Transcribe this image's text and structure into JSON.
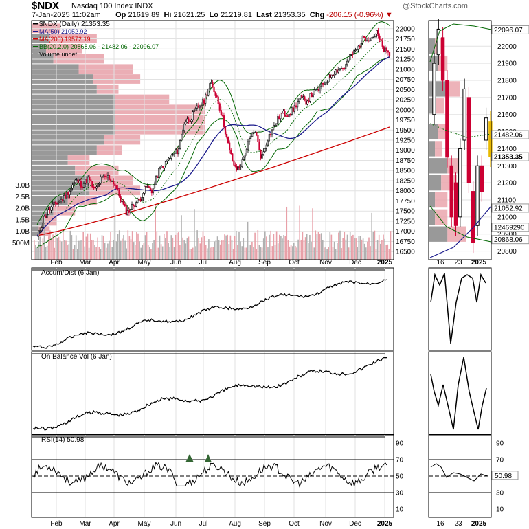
{
  "header": {
    "symbol": "$NDX",
    "name": "Nasdaq 100 Index INDX",
    "brand": "@StockCharts.com",
    "date": "7-Jan-2025 11:02am",
    "open_label": "Op",
    "open": "21619.89",
    "high_label": "Hi",
    "high": "21621.25",
    "low_label": "Lo",
    "low": "21219.81",
    "last_label": "Last",
    "last": "21353.35",
    "chg_label": "Chg",
    "chg": "-206.15 (-0.96%)"
  },
  "legend": {
    "price": "$NDX (Daily) 21353.35",
    "ma50": "MA(50) 21052.92",
    "ma200": "MA(200) 19572.19",
    "bb": "BB(20,2.0) 20868.06 - 21482.06 - 22096.07",
    "volume": "Volume undef"
  },
  "panels": {
    "accum": "Accum/Dist (6 Jan)",
    "obv": "On Balance Vol (6 Jan)",
    "rsi": "RSI(14) 50.98"
  },
  "price_axis_right": [
    "22000",
    "21750",
    "21500",
    "21250",
    "21000",
    "20750",
    "20500",
    "20250",
    "20000",
    "19750",
    "19500",
    "19250",
    "19000",
    "18750",
    "18500",
    "18250",
    "18000",
    "17750",
    "17500",
    "17250",
    "17000",
    "16750",
    "16500"
  ],
  "volume_axis_left": [
    "3.0B",
    "2.5B",
    "2.0B",
    "1.5B",
    "1.0B",
    "500M"
  ],
  "month_labels": [
    "Feb",
    "Mar",
    "Apr",
    "May",
    "Jun",
    "Jul",
    "Aug",
    "Sep",
    "Oct",
    "Nov",
    "Dec",
    "2025"
  ],
  "zoom": {
    "price_axis": [
      "22000",
      "21900",
      "21800",
      "21700",
      "21600",
      "21500",
      "21400",
      "21300",
      "21200",
      "21100",
      "21000",
      "20900",
      "20800"
    ],
    "badges": {
      "bb_upper": "22096.07",
      "bb_mid": "21482.06",
      "last": "21353.35",
      "ma50": "21052.92",
      "extra": "12469290",
      "bb_lower": "20868.06"
    },
    "x_labels": [
      "16",
      "23",
      "2025"
    ]
  },
  "rsi_axis": [
    "90",
    "70",
    "50",
    "30",
    "10"
  ],
  "rsi_badge": "50.98",
  "colors": {
    "up": "#000000",
    "down": "#cc0033",
    "ma50": "#1a1a8c",
    "ma200": "#cc0000",
    "bb": "#006600",
    "vbp_gray": "#999999",
    "vbp_red": "#e8a0a8",
    "vol_red": "#e8a0a8",
    "vol_gray": "#b0b0b0",
    "rsi_fill": "#336633"
  },
  "chart_data": {
    "type": "line",
    "title": "$NDX (Daily) 21353.35",
    "x_start": "2024-01-08",
    "x_end": "2025-01-07",
    "ylim": [
      16300,
      22200
    ],
    "close_weekly": [
      16850,
      17300,
      17550,
      17700,
      17800,
      18000,
      18250,
      18150,
      18300,
      18000,
      18300,
      18350,
      18200,
      17800,
      17450,
      17650,
      17800,
      18100,
      18000,
      18500,
      18700,
      18850,
      19000,
      19700,
      19800,
      20050,
      20200,
      20650,
      20350,
      19750,
      19000,
      18500,
      18700,
      19200,
      19500,
      18800,
      19300,
      19600,
      19900,
      19900,
      20000,
      20300,
      20200,
      20400,
      20500,
      20700,
      20900,
      21000,
      21050,
      21350,
      21500,
      21800,
      21750,
      21900,
      21500,
      21350
    ],
    "ma50_last": 21052.92,
    "ma200_last": 19572.19,
    "bb": {
      "lower": 20868.06,
      "mid": 21482.06,
      "upper": 22096.07
    },
    "rsi_last": 50.98
  }
}
